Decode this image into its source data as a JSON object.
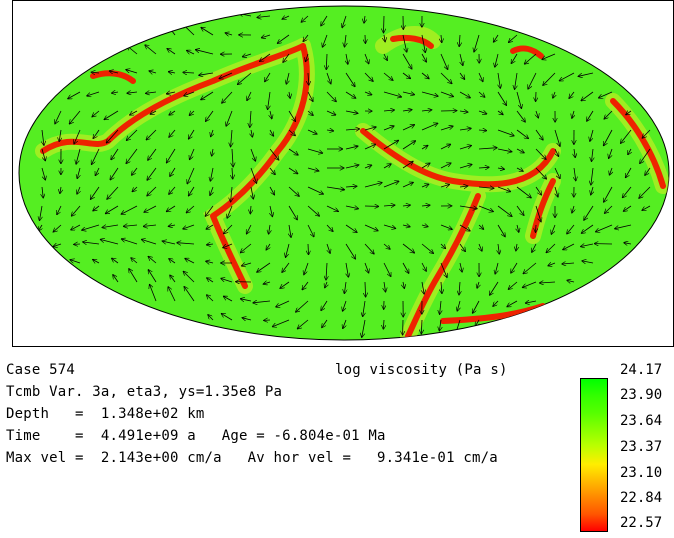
{
  "case_label": "Case 574",
  "run_description": "Tcmb Var. 3a, eta3, ys=1.35e8 Pa",
  "depth_line": "Depth   =  1.348e+02 km",
  "time_line": "Time    =  4.491e+09 a   Age = -6.804e-01 Ma",
  "vel_line": "Max vel =  2.143e+00 cm/a   Av hor vel =   9.341e-01 cm/a",
  "field_title": "log viscosity (Pa s)",
  "colorbar": {
    "ticks": [
      "24.17",
      "23.90",
      "23.64",
      "23.37",
      "23.10",
      "22.84",
      "22.57"
    ],
    "colors": [
      "#00ff00",
      "#33ff00",
      "#55ff00",
      "#88ff00",
      "#bbff00",
      "#ffee00",
      "#ffbb00",
      "#ff8800",
      "#ff5500",
      "#ff0000"
    ]
  },
  "map": {
    "projection": "hammer-aitoff",
    "background_color": "#55ee22",
    "boundary_color": "#ee2200",
    "arrow_color": "#000000"
  }
}
